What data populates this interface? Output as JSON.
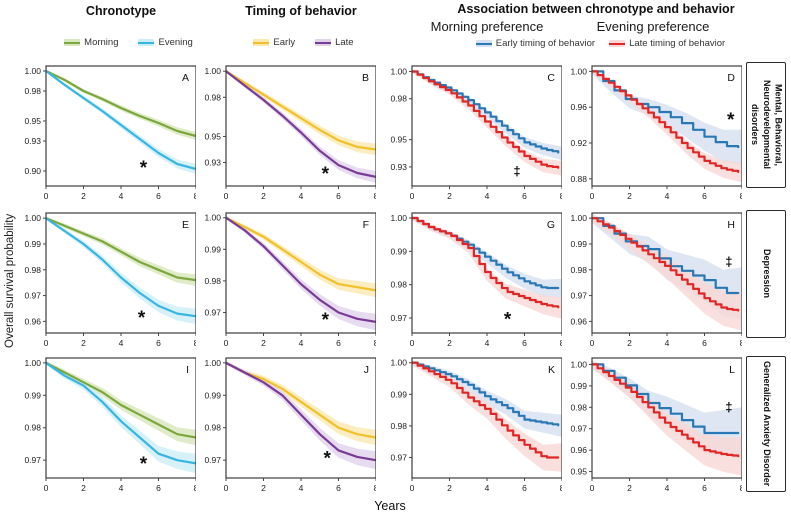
{
  "headers": {
    "chronotype": "Chronotype",
    "timing": "Timing of behavior",
    "association": "Association between chronotype and behavior",
    "morning_pref": "Morning preference",
    "evening_pref": "Evening preference"
  },
  "axes": {
    "y_label": "Overall survival probability",
    "x_label": "Years"
  },
  "row_labels": [
    "Mental, Behavioral, Neurodevelopmental disorders",
    "Depression",
    "Generalized Anxiety Disorder"
  ],
  "legends": {
    "chronotype": [
      {
        "label": "Morning",
        "color": "#7ba73d",
        "band": "#d8e7bb"
      },
      {
        "label": "Evening",
        "color": "#38b6e3",
        "band": "#cdeef8"
      }
    ],
    "timing": [
      {
        "label": "Early",
        "color": "#f2c029",
        "band": "#fbe9b0"
      },
      {
        "label": "Late",
        "color": "#7a3b97",
        "band": "#e0d2eb"
      }
    ],
    "association": [
      {
        "label": "Early timing of behavior",
        "color": "#2878b5",
        "band": "#d7e0f0"
      },
      {
        "label": "Late timing of behavior",
        "color": "#e12726",
        "band": "#f8d8d6"
      }
    ]
  },
  "chart_data": [
    {
      "id": "A",
      "type": "line",
      "column": "Chronotype",
      "row": "Mental, Behavioral, Neurodevelopmental disorders",
      "x": [
        0,
        1,
        2,
        3,
        4,
        5,
        6,
        7,
        8
      ],
      "xticks": [
        0,
        2,
        4,
        6,
        8
      ],
      "yticks": [
        1.0,
        0.98,
        0.95,
        0.93,
        0.9
      ],
      "ylim": [
        0.885,
        1.005
      ],
      "symbol": {
        "char": "*",
        "x": 5.2,
        "y": 0.906
      },
      "series": [
        {
          "name": "Morning",
          "color": "#7ba73d",
          "band_color": "#d8e7bb",
          "band_w": [
            0.0012,
            0.004
          ],
          "step": 0,
          "values": [
            1.0,
            0.991,
            0.98,
            0.972,
            0.963,
            0.955,
            0.948,
            0.94,
            0.935
          ]
        },
        {
          "name": "Evening",
          "color": "#38b6e3",
          "band_color": "#cdeef8",
          "band_w": [
            0.0012,
            0.005
          ],
          "step": 0,
          "values": [
            1.0,
            0.986,
            0.973,
            0.96,
            0.946,
            0.932,
            0.918,
            0.907,
            0.902
          ]
        }
      ]
    },
    {
      "id": "B",
      "type": "line",
      "column": "Timing of behavior",
      "row": "Mental, Behavioral, Neurodevelopmental disorders",
      "x": [
        0,
        1,
        2,
        3,
        4,
        5,
        6,
        7,
        8
      ],
      "xticks": [
        0,
        2,
        4,
        6,
        8
      ],
      "yticks": [
        1.0,
        0.98,
        0.95,
        0.93
      ],
      "ylim": [
        0.912,
        1.004
      ],
      "symbol": {
        "char": "*",
        "x": 5.3,
        "y": 0.9235
      },
      "series": [
        {
          "name": "Early",
          "color": "#f2c029",
          "band_color": "#fbe9b0",
          "band_w": [
            0.0012,
            0.0045
          ],
          "step": 0,
          "values": [
            1.0,
            0.991,
            0.982,
            0.973,
            0.964,
            0.955,
            0.947,
            0.942,
            0.94
          ]
        },
        {
          "name": "Late",
          "color": "#7a3b97",
          "band_color": "#e0d2eb",
          "band_w": [
            0.0012,
            0.0045
          ],
          "step": 0,
          "values": [
            1.0,
            0.989,
            0.978,
            0.966,
            0.953,
            0.939,
            0.928,
            0.922,
            0.919
          ]
        }
      ]
    },
    {
      "id": "C",
      "type": "line",
      "column": "Morning preference",
      "row": "Mental, Behavioral, Neurodevelopmental disorders",
      "x": [
        0,
        1,
        2,
        3,
        4,
        5,
        6,
        7,
        8
      ],
      "xticks": [
        0,
        2,
        4,
        6,
        8
      ],
      "yticks": [
        1.0,
        0.98,
        0.95,
        0.93
      ],
      "ylim": [
        0.916,
        1.004
      ],
      "symbol": {
        "char": "‡",
        "x": 5.6,
        "y": 0.9265
      },
      "series": [
        {
          "name": "Early timing of behavior",
          "color": "#2878b5",
          "band_color": "#d7e0f0",
          "band_w": [
            0.001,
            0.005
          ],
          "step": 0.3,
          "values": [
            1.0,
            0.993,
            0.987,
            0.979,
            0.969,
            0.958,
            0.948,
            0.943,
            0.94
          ]
        },
        {
          "name": "Late timing of behavior",
          "color": "#e12726",
          "band_color": "#f8d8d6",
          "band_w": [
            0.001,
            0.0055
          ],
          "step": 0.3,
          "values": [
            1.0,
            0.992,
            0.985,
            0.975,
            0.962,
            0.949,
            0.938,
            0.931,
            0.929
          ]
        }
      ]
    },
    {
      "id": "D",
      "type": "line",
      "column": "Evening preference",
      "row": "Mental, Behavioral, Neurodevelopmental disorders",
      "x": [
        0,
        1,
        2,
        3,
        4,
        5,
        6,
        7,
        8
      ],
      "xticks": [
        0,
        2,
        4,
        6,
        8
      ],
      "yticks": [
        1.0,
        0.96,
        0.92,
        0.88
      ],
      "ylim": [
        0.872,
        1.006
      ],
      "symbol": {
        "char": "*",
        "x": 7.4,
        "y": 0.949
      },
      "series": [
        {
          "name": "Early timing of behavior",
          "color": "#2878b5",
          "band_color": "#d7e0f0",
          "band_w": [
            0.003,
            0.02
          ],
          "step": 0.6,
          "values": [
            1.0,
            0.982,
            0.966,
            0.96,
            0.951,
            0.94,
            0.927,
            0.917,
            0.915
          ]
        },
        {
          "name": "Late timing of behavior",
          "color": "#e12726",
          "band_color": "#f8d8d6",
          "band_w": [
            0.002,
            0.011
          ],
          "step": 0.3,
          "values": [
            1.0,
            0.986,
            0.97,
            0.954,
            0.936,
            0.916,
            0.9,
            0.891,
            0.887
          ]
        }
      ]
    },
    {
      "id": "E",
      "type": "line",
      "column": "Chronotype",
      "row": "Depression",
      "x": [
        0,
        1,
        2,
        3,
        4,
        5,
        6,
        7,
        8
      ],
      "xticks": [
        0,
        2,
        4,
        6,
        8
      ],
      "yticks": [
        1.0,
        0.99,
        0.98,
        0.97,
        0.96
      ],
      "ylim": [
        0.9555,
        1.002
      ],
      "symbol": {
        "char": "*",
        "x": 5.1,
        "y": 0.9625
      },
      "series": [
        {
          "name": "Morning",
          "color": "#7ba73d",
          "band_color": "#d8e7bb",
          "band_w": [
            0.0006,
            0.0022
          ],
          "step": 0,
          "values": [
            1.0,
            0.997,
            0.994,
            0.991,
            0.987,
            0.983,
            0.98,
            0.977,
            0.976
          ]
        },
        {
          "name": "Evening",
          "color": "#38b6e3",
          "band_color": "#cdeef8",
          "band_w": [
            0.0006,
            0.003
          ],
          "step": 0,
          "values": [
            1.0,
            0.995,
            0.99,
            0.984,
            0.977,
            0.971,
            0.966,
            0.963,
            0.962
          ]
        }
      ]
    },
    {
      "id": "F",
      "type": "line",
      "column": "Timing of behavior",
      "row": "Depression",
      "x": [
        0,
        1,
        2,
        3,
        4,
        5,
        6,
        7,
        8
      ],
      "xticks": [
        0,
        2,
        4,
        6,
        8
      ],
      "yticks": [
        1.0,
        0.99,
        0.98,
        0.97
      ],
      "ylim": [
        0.9635,
        1.0015
      ],
      "symbol": {
        "char": "*",
        "x": 5.3,
        "y": 0.9685
      },
      "series": [
        {
          "name": "Early",
          "color": "#f2c029",
          "band_color": "#fbe9b0",
          "band_w": [
            0.0005,
            0.0022
          ],
          "step": 0,
          "values": [
            1.0,
            0.997,
            0.994,
            0.99,
            0.986,
            0.982,
            0.979,
            0.978,
            0.977
          ]
        },
        {
          "name": "Late",
          "color": "#7a3b97",
          "band_color": "#e0d2eb",
          "band_w": [
            0.0005,
            0.0026
          ],
          "step": 0,
          "values": [
            1.0,
            0.996,
            0.991,
            0.985,
            0.979,
            0.974,
            0.97,
            0.968,
            0.967
          ]
        }
      ]
    },
    {
      "id": "G",
      "type": "line",
      "column": "Morning preference",
      "row": "Depression",
      "x": [
        0,
        1,
        2,
        3,
        4,
        5,
        6,
        7,
        8
      ],
      "xticks": [
        0,
        2,
        4,
        6,
        8
      ],
      "yticks": [
        1.0,
        0.99,
        0.98,
        0.97
      ],
      "ylim": [
        0.9655,
        1.0015
      ],
      "symbol": {
        "char": "*",
        "x": 5.1,
        "y": 0.9705
      },
      "series": [
        {
          "name": "Early timing of behavior",
          "color": "#2878b5",
          "band_color": "#d7e0f0",
          "band_w": [
            0.0005,
            0.0028
          ],
          "step": 0.3,
          "values": [
            1.0,
            0.997,
            0.995,
            0.992,
            0.988,
            0.984,
            0.981,
            0.979,
            0.979
          ]
        },
        {
          "name": "Late timing of behavior",
          "color": "#e12726",
          "band_color": "#f8d8d6",
          "band_w": [
            0.0005,
            0.0032
          ],
          "step": 0.3,
          "values": [
            1.0,
            0.997,
            0.995,
            0.991,
            0.983,
            0.978,
            0.976,
            0.974,
            0.973
          ]
        }
      ]
    },
    {
      "id": "H",
      "type": "line",
      "column": "Evening preference",
      "row": "Depression",
      "x": [
        0,
        1,
        2,
        3,
        4,
        5,
        6,
        7,
        8
      ],
      "xticks": [
        0,
        2,
        4,
        6,
        8
      ],
      "yticks": [
        1.0,
        0.99,
        0.98,
        0.97,
        0.96
      ],
      "ylim": [
        0.9555,
        1.002
      ],
      "symbol": {
        "char": "‡",
        "x": 7.3,
        "y": 0.983
      },
      "series": [
        {
          "name": "Early timing of behavior",
          "color": "#2878b5",
          "band_color": "#d7e0f0",
          "band_w": [
            0.0018,
            0.01
          ],
          "step": 0.6,
          "values": [
            1.0,
            0.995,
            0.99,
            0.988,
            0.982,
            0.979,
            0.976,
            0.971,
            0.971
          ]
        },
        {
          "name": "Late timing of behavior",
          "color": "#e12726",
          "band_color": "#f8d8d6",
          "band_w": [
            0.0014,
            0.0075
          ],
          "step": 0.3,
          "values": [
            1.0,
            0.996,
            0.991,
            0.986,
            0.981,
            0.975,
            0.969,
            0.965,
            0.964
          ]
        }
      ]
    },
    {
      "id": "I",
      "type": "line",
      "column": "Chronotype",
      "row": "Generalized Anxiety Disorder",
      "x": [
        0,
        1,
        2,
        3,
        4,
        5,
        6,
        7,
        8
      ],
      "xticks": [
        0,
        2,
        4,
        6,
        8
      ],
      "yticks": [
        1.0,
        0.99,
        0.98,
        0.97
      ],
      "ylim": [
        0.9645,
        1.0015
      ],
      "symbol": {
        "char": "*",
        "x": 5.2,
        "y": 0.9697
      },
      "series": [
        {
          "name": "Morning",
          "color": "#7ba73d",
          "band_color": "#d8e7bb",
          "band_w": [
            0.0006,
            0.0024
          ],
          "step": 0,
          "values": [
            1.0,
            0.997,
            0.994,
            0.991,
            0.987,
            0.984,
            0.981,
            0.978,
            0.977
          ]
        },
        {
          "name": "Evening",
          "color": "#38b6e3",
          "band_color": "#cdeef8",
          "band_w": [
            0.0006,
            0.003
          ],
          "step": 0,
          "values": [
            1.0,
            0.996,
            0.993,
            0.988,
            0.982,
            0.977,
            0.972,
            0.97,
            0.969
          ]
        }
      ]
    },
    {
      "id": "J",
      "type": "line",
      "column": "Timing of behavior",
      "row": "Generalized Anxiety Disorder",
      "x": [
        0,
        1,
        2,
        3,
        4,
        5,
        6,
        7,
        8
      ],
      "xticks": [
        0,
        2,
        4,
        6,
        8
      ],
      "yticks": [
        1.0,
        0.99,
        0.98,
        0.97
      ],
      "ylim": [
        0.9645,
        1.0015
      ],
      "symbol": {
        "char": "*",
        "x": 5.4,
        "y": 0.9715
      },
      "series": [
        {
          "name": "Early",
          "color": "#f2c029",
          "band_color": "#fbe9b0",
          "band_w": [
            0.0005,
            0.0024
          ],
          "step": 0,
          "values": [
            1.0,
            0.997,
            0.995,
            0.992,
            0.988,
            0.984,
            0.98,
            0.978,
            0.977
          ]
        },
        {
          "name": "Late",
          "color": "#7a3b97",
          "band_color": "#e0d2eb",
          "band_w": [
            0.0005,
            0.0028
          ],
          "step": 0,
          "values": [
            1.0,
            0.997,
            0.994,
            0.99,
            0.984,
            0.978,
            0.973,
            0.971,
            0.97
          ]
        }
      ]
    },
    {
      "id": "K",
      "type": "line",
      "column": "Morning preference",
      "row": "Generalized Anxiety Disorder",
      "x": [
        0,
        1,
        2,
        3,
        4,
        5,
        6,
        7,
        8
      ],
      "xticks": [
        0,
        2,
        4,
        6,
        8
      ],
      "yticks": [
        1.0,
        0.99,
        0.98,
        0.97
      ],
      "ylim": [
        0.9635,
        1.0015
      ],
      "symbol": null,
      "series": [
        {
          "name": "Early timing of behavior",
          "color": "#2878b5",
          "band_color": "#d7e0f0",
          "band_w": [
            0.0008,
            0.0035
          ],
          "step": 0.3,
          "values": [
            1.0,
            0.998,
            0.996,
            0.993,
            0.989,
            0.986,
            0.982,
            0.981,
            0.98
          ]
        },
        {
          "name": "Late timing of behavior",
          "color": "#e12726",
          "band_color": "#f8d8d6",
          "band_w": [
            0.0008,
            0.0045
          ],
          "step": 0.3,
          "values": [
            1.0,
            0.997,
            0.994,
            0.989,
            0.985,
            0.979,
            0.974,
            0.97,
            0.97
          ]
        }
      ]
    },
    {
      "id": "L",
      "type": "line",
      "column": "Evening preference",
      "row": "Generalized Anxiety Disorder",
      "x": [
        0,
        1,
        2,
        3,
        4,
        5,
        6,
        7,
        8
      ],
      "xticks": [
        0,
        2,
        4,
        6,
        8
      ],
      "yticks": [
        1.0,
        0.99,
        0.98,
        0.97,
        0.96,
        0.95
      ],
      "ylim": [
        0.947,
        1.003
      ],
      "symbol": {
        "char": "‡",
        "x": 7.3,
        "y": 0.98
      },
      "series": [
        {
          "name": "Early timing of behavior",
          "color": "#2878b5",
          "band_color": "#d7e0f0",
          "band_w": [
            0.002,
            0.012
          ],
          "step": 0.6,
          "values": [
            1.0,
            0.995,
            0.989,
            0.982,
            0.978,
            0.973,
            0.968,
            0.968,
            0.968
          ]
        },
        {
          "name": "Late timing of behavior",
          "color": "#e12726",
          "band_color": "#f8d8d6",
          "band_w": [
            0.0016,
            0.009
          ],
          "step": 0.3,
          "values": [
            1.0,
            0.994,
            0.988,
            0.98,
            0.972,
            0.966,
            0.96,
            0.958,
            0.957
          ]
        }
      ]
    }
  ]
}
